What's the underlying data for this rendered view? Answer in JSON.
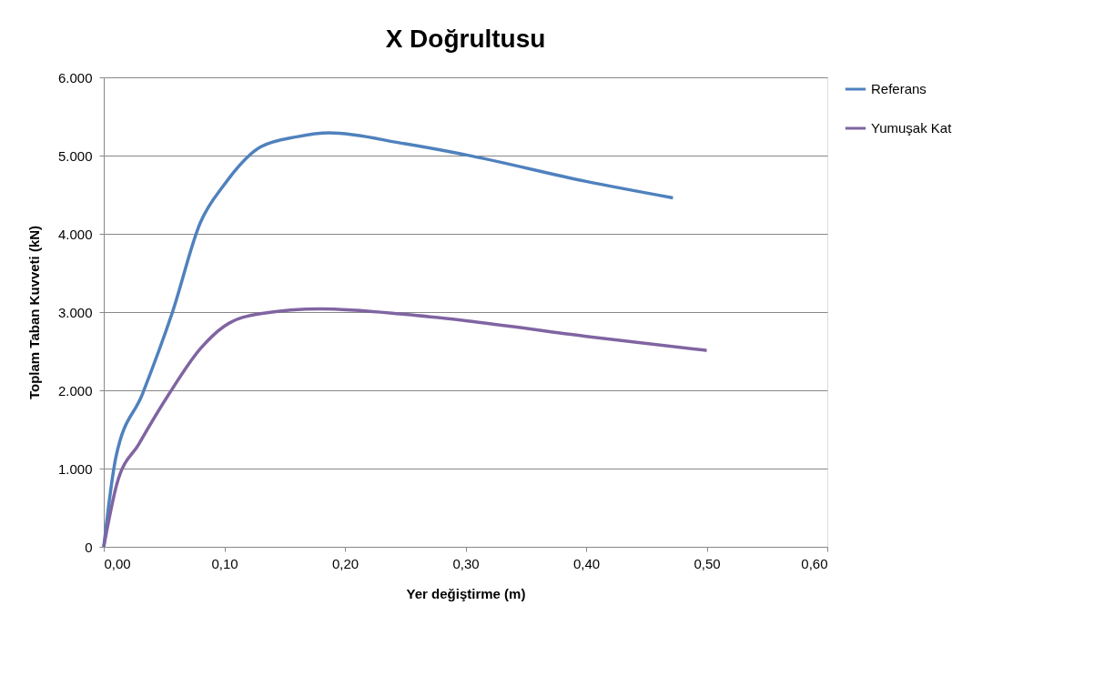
{
  "chart_data": {
    "type": "line",
    "title": "X Doğrultusu",
    "xlabel": "Yer değiştirme (m)",
    "ylabel": "Toplam Taban  Kuvveti (kN)",
    "xlim": [
      0,
      0.6
    ],
    "xticks": [
      {
        "value": 0,
        "label": "0,00"
      },
      {
        "value": 0.1,
        "label": "0,10"
      },
      {
        "value": 0.2,
        "label": "0,20"
      },
      {
        "value": 0.3,
        "label": "0,30"
      },
      {
        "value": 0.4,
        "label": "0,40"
      },
      {
        "value": 0.5,
        "label": "0,50"
      },
      {
        "value": 0.6,
        "label": "0,60"
      }
    ],
    "ylim": [
      0,
      6000
    ],
    "yticks": [
      0,
      {
        "value": 1000,
        "label": "1.000"
      },
      {
        "value": 2000,
        "label": "2.000"
      },
      {
        "value": 3000,
        "label": "3.000"
      },
      {
        "value": 4000,
        "label": "4.000"
      },
      {
        "value": 5000,
        "label": "5.000"
      },
      {
        "value": 6000,
        "label": "6.000"
      }
    ],
    "grid": "y",
    "legend": "right",
    "marker": "none",
    "line_style": "solid",
    "series": [
      {
        "name": "Referans",
        "color": "#4f81bd",
        "x": [
          0,
          0.01,
          0.032,
          0.057,
          0.08,
          0.1,
          0.13,
          0.16,
          0.187,
          0.25,
          0.3,
          0.4,
          0.472
        ],
        "values": [
          0,
          1140,
          1950,
          3000,
          4140,
          4630,
          5110,
          5240,
          5290,
          5150,
          5010,
          4670,
          4460
        ]
      },
      {
        "name": "Yumuşak Kat",
        "color": "#8064a2",
        "x": [
          0,
          0.011,
          0.029,
          0.054,
          0.08,
          0.1,
          0.13,
          0.18,
          0.25,
          0.3,
          0.4,
          0.5
        ],
        "values": [
          0,
          810,
          1310,
          1950,
          2530,
          2820,
          2980,
          3040,
          2970,
          2890,
          2690,
          2510
        ]
      }
    ]
  }
}
